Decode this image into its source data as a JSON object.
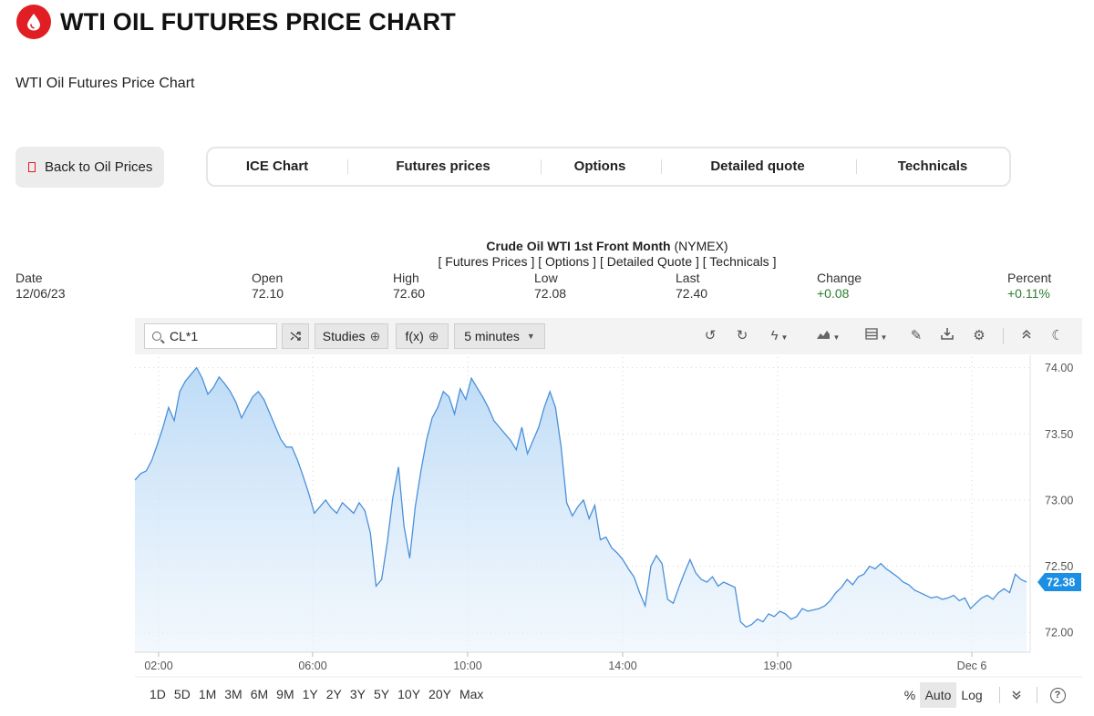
{
  "header": {
    "title": "WTI OIL FUTURES PRICE CHART",
    "subtitle": "WTI Oil Futures Price Chart",
    "brand_color": "#e01e24"
  },
  "back_button": {
    "label": "Back to Oil Prices"
  },
  "nav_tabs": [
    {
      "label": "ICE Chart"
    },
    {
      "label": "Futures prices"
    },
    {
      "label": "Options"
    },
    {
      "label": "Detailed quote"
    },
    {
      "label": "Technicals"
    }
  ],
  "quote": {
    "name": "Crude Oil WTI 1st Front Month",
    "exchange": "(NYMEX)",
    "links": [
      "[ Futures Prices ]",
      "[ Options ]",
      "[ Detailed Quote ]",
      "[ Technicals ]"
    ],
    "columns": [
      {
        "label": "Date",
        "value": "12/06/23"
      },
      {
        "label": "Open",
        "value": "72.10"
      },
      {
        "label": "High",
        "value": "72.60"
      },
      {
        "label": "Low",
        "value": "72.08"
      },
      {
        "label": "Last",
        "value": "72.40"
      },
      {
        "label": "Change",
        "value": "+0.08"
      },
      {
        "label": "Percent",
        "value": "+0.11%"
      }
    ]
  },
  "toolbar": {
    "symbol": "CL*1",
    "studies_label": "Studies",
    "fx_label": "f(x)",
    "interval_label": "5 minutes",
    "icons": [
      "compare-icon",
      "plus-circle-icon",
      "chevron-down-icon",
      "undo-icon",
      "redo-icon",
      "lightning-icon",
      "chart-type-icon",
      "layout-icon",
      "pencil-icon",
      "download-icon",
      "gear-icon",
      "collapse-up-icon",
      "dark-mode-icon"
    ]
  },
  "range_bar": {
    "items": [
      "1D",
      "5D",
      "1M",
      "3M",
      "6M",
      "9M",
      "1Y",
      "2Y",
      "3Y",
      "5Y",
      "10Y",
      "20Y",
      "Max"
    ]
  },
  "scale_controls": {
    "percent": "%",
    "auto": "Auto",
    "log": "Log",
    "expand_icon": "double-chevron-down-icon",
    "help": "?"
  },
  "chart_data": {
    "type": "area",
    "symbol": "CL*1",
    "interval": "5 minutes",
    "x_ticks": [
      "02:00",
      "06:00",
      "10:00",
      "14:00",
      "19:00",
      "Dec 6"
    ],
    "y_ticks": [
      "72.00",
      "72.50",
      "73.00",
      "73.50",
      "74.00"
    ],
    "ylim": [
      71.85,
      74.08
    ],
    "last_price_label": "72.38",
    "line_color": "#4a90d9",
    "grid": "dotted",
    "series": [
      {
        "values": [
          73.15,
          73.2,
          73.22,
          73.3,
          73.42,
          73.55,
          73.7,
          73.6,
          73.82,
          73.9,
          73.95,
          74.0,
          73.92,
          73.8,
          73.85,
          73.93,
          73.88,
          73.82,
          73.74,
          73.62,
          73.7,
          73.78,
          73.82,
          73.76,
          73.66,
          73.56,
          73.46,
          73.4,
          73.4,
          73.3,
          73.18,
          73.05,
          72.9,
          72.95,
          73.0,
          72.94,
          72.9,
          72.98,
          72.94,
          72.9,
          72.98,
          72.92,
          72.75,
          72.35,
          72.4,
          72.68,
          73.02,
          73.25,
          72.8,
          72.56,
          72.95,
          73.22,
          73.45,
          73.62,
          73.7,
          73.82,
          73.78,
          73.65,
          73.84,
          73.76,
          73.92,
          73.85,
          73.78,
          73.7,
          73.6,
          73.55,
          73.5,
          73.45,
          73.38,
          73.55,
          73.35,
          73.45,
          73.55,
          73.7,
          73.82,
          73.7,
          73.4,
          72.98,
          72.88,
          72.95,
          73.0,
          72.86,
          72.96,
          72.7,
          72.72,
          72.64,
          72.6,
          72.55,
          72.48,
          72.42,
          72.3,
          72.2,
          72.5,
          72.58,
          72.52,
          72.25,
          72.22,
          72.34,
          72.45,
          72.55,
          72.45,
          72.4,
          72.38,
          72.42,
          72.35,
          72.38,
          72.36,
          72.34,
          72.08,
          72.04,
          72.06,
          72.1,
          72.08,
          72.14,
          72.12,
          72.16,
          72.14,
          72.1,
          72.12,
          72.18,
          72.16,
          72.17,
          72.18,
          72.2,
          72.24,
          72.3,
          72.34,
          72.4,
          72.36,
          72.42,
          72.44,
          72.5,
          72.48,
          72.52,
          72.48,
          72.45,
          72.42,
          72.38,
          72.36,
          72.32,
          72.3,
          72.28,
          72.26,
          72.27,
          72.25,
          72.26,
          72.28,
          72.24,
          72.26,
          72.18,
          72.22,
          72.26,
          72.28,
          72.25,
          72.3,
          72.33,
          72.3,
          72.44,
          72.4,
          72.38
        ]
      }
    ]
  }
}
